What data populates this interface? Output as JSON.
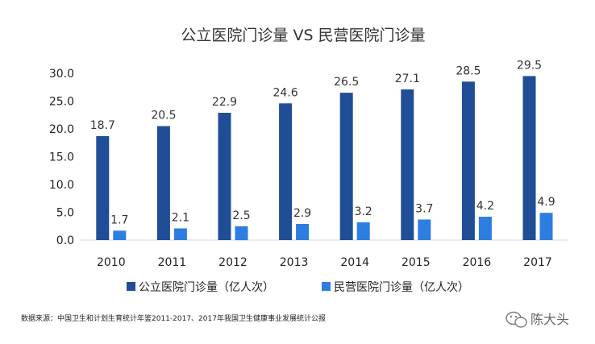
{
  "chart_data": {
    "type": "bar",
    "title": "公立医院门诊量 VS 民营医院门诊量",
    "categories": [
      "2010",
      "2011",
      "2012",
      "2013",
      "2014",
      "2015",
      "2016",
      "2017"
    ],
    "series": [
      {
        "name": "公立医院门诊量（亿人次）",
        "color": "#1f4e96",
        "values": [
          18.7,
          20.5,
          22.9,
          24.6,
          26.5,
          27.1,
          28.5,
          29.5
        ],
        "labels": [
          "18.7",
          "20.5",
          "22.9",
          "24.6",
          "26.5",
          "27.1",
          "28.5",
          "29.5"
        ]
      },
      {
        "name": "民营医院门诊量（亿人次）",
        "color": "#2e7de1",
        "values": [
          1.7,
          2.1,
          2.5,
          2.9,
          3.2,
          3.7,
          4.2,
          4.9
        ],
        "labels": [
          "1.7",
          "2.1",
          "2.5",
          "2.9",
          "3.2",
          "3.7",
          "4.2",
          "4.9"
        ]
      }
    ],
    "yticks": [
      "30.0",
      "25.0",
      "20.0",
      "15.0",
      "10.0",
      "5.0",
      "0.0"
    ],
    "ylim": [
      0,
      30
    ],
    "legend_position": "bottom",
    "grid": false,
    "source": "数据来源：中国卫生和计划生育统计年鉴2011-2017、2017年我国卫生健康事业发展统计公报"
  },
  "watermark": {
    "text": "陈大头",
    "icon": "wechat-icon"
  }
}
